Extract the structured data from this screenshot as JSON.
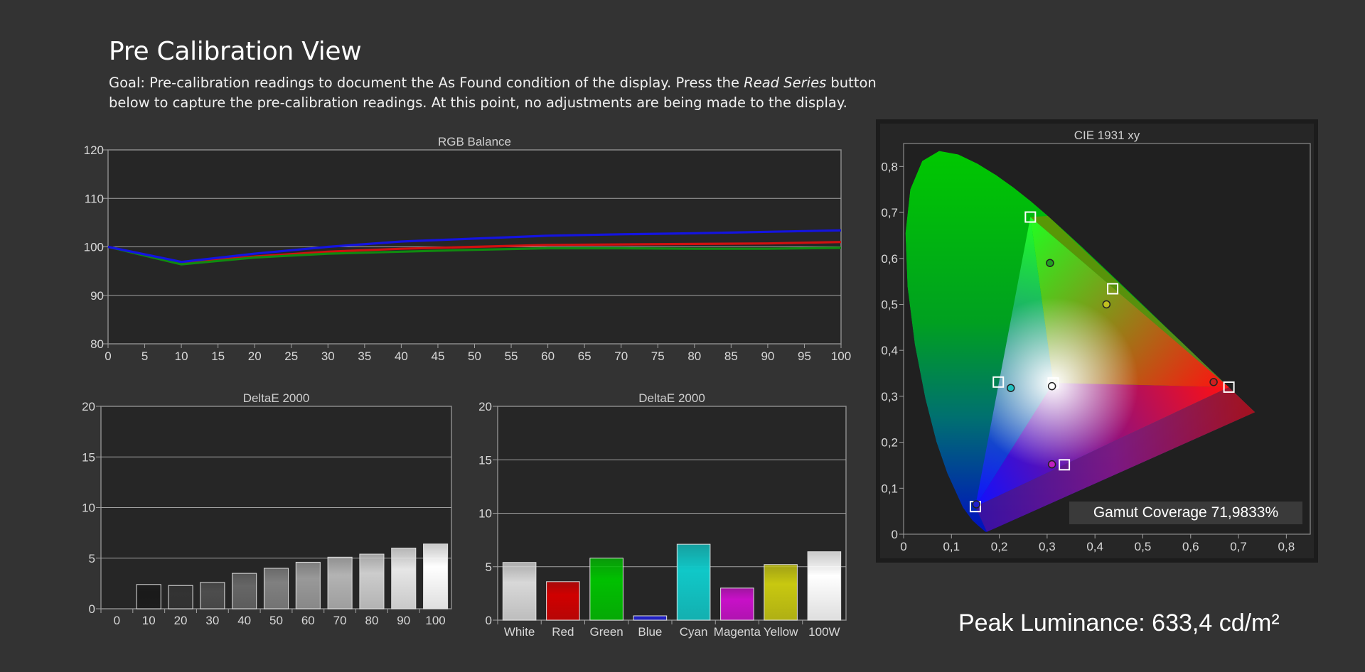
{
  "page": {
    "title": "Pre Calibration View",
    "desc_prefix": "Goal: Pre-calibration readings to document the As Found condition of the display. Press the ",
    "desc_emph": "Read Series",
    "desc_suffix": " button below to capture the pre-calibration readings. At this point, no adjustments are being made to the display."
  },
  "colors": {
    "background": "#333333",
    "plot_bg": "#262626",
    "red_series": "#d01010",
    "green_series": "#108a10",
    "blue_series": "#1414e0"
  },
  "peak_luminance": "Peak Luminance: 633,4 cd/m²",
  "gamut_coverage": "Gamut Coverage 71,9833%",
  "chart_data": [
    {
      "id": "rgb",
      "type": "line",
      "title": "RGB Balance",
      "xlabel": "",
      "ylabel": "",
      "xlim": [
        0,
        100
      ],
      "ylim": [
        80,
        120
      ],
      "x": [
        0,
        10,
        20,
        30,
        40,
        50,
        60,
        70,
        80,
        90,
        100
      ],
      "x_ticks": [
        0,
        5,
        10,
        15,
        20,
        25,
        30,
        35,
        40,
        45,
        50,
        55,
        60,
        65,
        70,
        75,
        80,
        85,
        90,
        95,
        100
      ],
      "y_ticks": [
        80,
        90,
        100,
        110,
        120
      ],
      "grid": true,
      "series": [
        {
          "color": "#d01010",
          "values": [
            100,
            96.7,
            98.0,
            99.0,
            99.6,
            100.0,
            100.4,
            100.5,
            100.6,
            100.7,
            101.0
          ]
        },
        {
          "color": "#108a10",
          "values": [
            100,
            96.4,
            97.8,
            98.6,
            99.0,
            99.4,
            99.7,
            99.7,
            99.6,
            99.6,
            99.8
          ]
        },
        {
          "color": "#1414e0",
          "values": [
            100,
            96.9,
            98.6,
            100.0,
            101.1,
            101.7,
            102.3,
            102.6,
            102.8,
            103.1,
            103.4
          ]
        }
      ]
    },
    {
      "id": "de-gray",
      "type": "bar",
      "title": "DeltaE 2000",
      "ylim": [
        0,
        20
      ],
      "y_ticks": [
        0,
        5,
        10,
        15,
        20
      ],
      "categories": [
        "0",
        "10",
        "20",
        "30",
        "40",
        "50",
        "60",
        "70",
        "80",
        "90",
        "100"
      ],
      "values": [
        0,
        2.4,
        2.3,
        2.6,
        3.5,
        4.0,
        4.6,
        5.1,
        5.4,
        6.0,
        6.4
      ],
      "bar_colors": [
        "#000000",
        "#1a1a1a",
        "#333333",
        "#4d4d4d",
        "#666666",
        "#808080",
        "#999999",
        "#b3b3b3",
        "#cccccc",
        "#e6e6e6",
        "#ffffff"
      ],
      "grid": true
    },
    {
      "id": "de-color",
      "type": "bar",
      "title": "DeltaE 2000",
      "ylim": [
        0,
        20
      ],
      "y_ticks": [
        0,
        5,
        10,
        15,
        20
      ],
      "categories": [
        "White",
        "Red",
        "Green",
        "Blue",
        "Cyan",
        "Magenta",
        "Yellow",
        "100W"
      ],
      "values": [
        5.4,
        3.6,
        5.8,
        0.4,
        7.1,
        3.0,
        5.2,
        6.4
      ],
      "bar_colors": [
        "#d8d8d8",
        "#d00000",
        "#00c000",
        "#2020c8",
        "#10c8c8",
        "#c810c8",
        "#c8c810",
        "#ffffff"
      ],
      "grid": true
    },
    {
      "id": "cie",
      "type": "scatter",
      "title": "CIE 1931 xy",
      "xlim": [
        0,
        0.85
      ],
      "ylim": [
        0,
        0.85
      ],
      "x_ticks": [
        "0",
        "0,1",
        "0,2",
        "0,3",
        "0,4",
        "0,5",
        "0,6",
        "0,7",
        "0,8"
      ],
      "y_ticks": [
        "0",
        "0,1",
        "0,2",
        "0,3",
        "0,4",
        "0,5",
        "0,6",
        "0,7",
        "0,8"
      ],
      "targets": [
        {
          "name": "R",
          "x": 0.68,
          "y": 0.32
        },
        {
          "name": "G",
          "x": 0.265,
          "y": 0.69
        },
        {
          "name": "B",
          "x": 0.15,
          "y": 0.06
        },
        {
          "name": "C",
          "x": 0.198,
          "y": 0.331
        },
        {
          "name": "M",
          "x": 0.336,
          "y": 0.151
        },
        {
          "name": "Y",
          "x": 0.437,
          "y": 0.534
        },
        {
          "name": "W",
          "x": 0.3127,
          "y": 0.329
        }
      ],
      "measured": [
        {
          "name": "R",
          "x": 0.648,
          "y": 0.331,
          "color": "#cc2020"
        },
        {
          "name": "G",
          "x": 0.306,
          "y": 0.59,
          "color": "#20a020"
        },
        {
          "name": "B",
          "x": 0.152,
          "y": 0.065,
          "color": "#2020cc"
        },
        {
          "name": "C",
          "x": 0.224,
          "y": 0.318,
          "color": "#20c0c0"
        },
        {
          "name": "M",
          "x": 0.31,
          "y": 0.152,
          "color": "#c020c0"
        },
        {
          "name": "Y",
          "x": 0.424,
          "y": 0.5,
          "color": "#c0c020"
        },
        {
          "name": "W",
          "x": 0.31,
          "y": 0.322,
          "color": "#ffffff"
        }
      ]
    }
  ]
}
